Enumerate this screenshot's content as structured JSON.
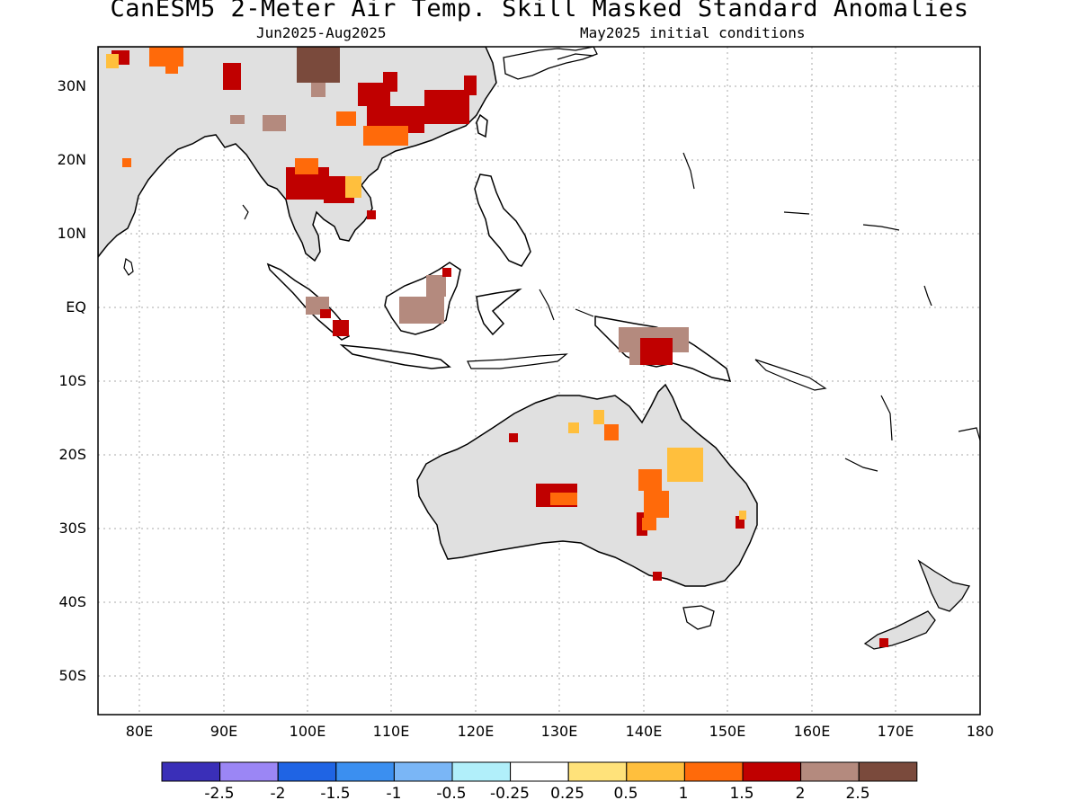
{
  "title": "CanESM5 2-Meter Air Temp. Skill Masked Standard Anomalies",
  "subtitle_left": "Jun2025-Aug2025",
  "subtitle_right": "May2025 initial conditions",
  "lat_labels": [
    "30N",
    "20N",
    "10N",
    "EQ",
    "10S",
    "20S",
    "30S",
    "40S",
    "50S"
  ],
  "lon_labels": [
    "80E",
    "90E",
    "100E",
    "110E",
    "120E",
    "130E",
    "140E",
    "150E",
    "160E",
    "170E",
    "180"
  ],
  "colorbar": {
    "colors": [
      "#3a2fb8",
      "#9b86f5",
      "#1f64e4",
      "#3b8ff0",
      "#7ab6f6",
      "#b1effa",
      "#ffffff",
      "#ffe27a",
      "#ffbf3d",
      "#ff6a0a",
      "#c00000",
      "#b48a7e",
      "#7a4a3c"
    ],
    "labels": [
      "-2.5",
      "-2",
      "-1.5",
      "-1",
      "-0.5",
      "-0.25",
      "0.25",
      "0.5",
      "1",
      "1.5",
      "2",
      "2.5"
    ]
  },
  "map_colors": {
    "land_skill": "#e0e0e0",
    "grid": "#a0a0a0",
    "coast": "#000000"
  }
}
